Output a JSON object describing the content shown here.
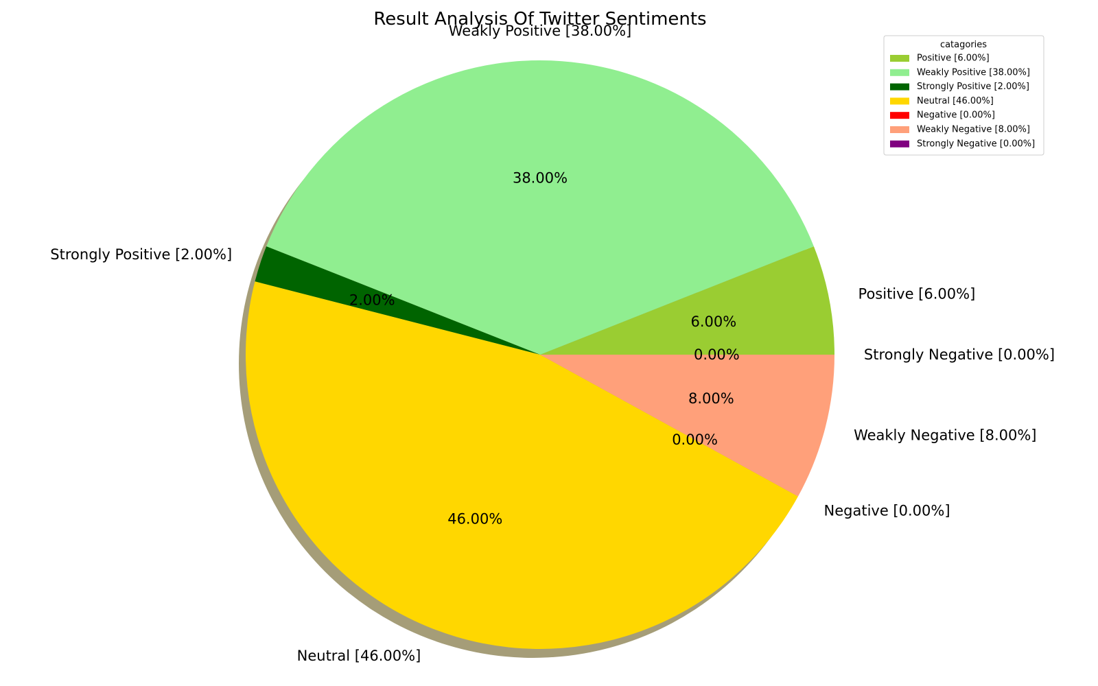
{
  "chart_data": {
    "type": "pie",
    "title": "Result Analysis Of Twitter Sentiments",
    "start_angle_deg": 0,
    "direction": "counterclockwise",
    "shadow": true,
    "slices": [
      {
        "name": "Positive",
        "value": 6.0,
        "label": "Positive [6.00%]",
        "pct_text": "6.00%",
        "color": "#9acd32"
      },
      {
        "name": "Weakly Positive",
        "value": 38.0,
        "label": "Weakly Positive [38.00%]",
        "pct_text": "38.00%",
        "color": "#90ee90"
      },
      {
        "name": "Strongly Positive",
        "value": 2.0,
        "label": "Strongly Positive [2.00%]",
        "pct_text": "2.00%",
        "color": "#006400"
      },
      {
        "name": "Neutral",
        "value": 46.0,
        "label": "Neutral [46.00%]",
        "pct_text": "46.00%",
        "color": "#ffd700"
      },
      {
        "name": "Negative",
        "value": 0.0,
        "label": "Negative [0.00%]",
        "pct_text": "0.00%",
        "color": "#ff0000"
      },
      {
        "name": "Weakly Negative",
        "value": 8.0,
        "label": "Weakly Negative [8.00%]",
        "pct_text": "8.00%",
        "color": "#ffa07a"
      },
      {
        "name": "Strongly Negative",
        "value": 0.0,
        "label": "Strongly Negative [0.00%]",
        "pct_text": "0.00%",
        "color": "#800080"
      }
    ],
    "legend": {
      "title": "catagories",
      "placement": "top-right"
    }
  }
}
